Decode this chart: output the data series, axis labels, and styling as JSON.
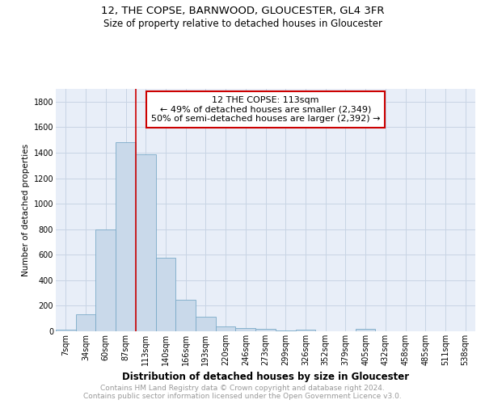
{
  "title": "12, THE COPSE, BARNWOOD, GLOUCESTER, GL4 3FR",
  "subtitle": "Size of property relative to detached houses in Gloucester",
  "xlabel": "Distribution of detached houses by size in Gloucester",
  "ylabel": "Number of detached properties",
  "categories": [
    "7sqm",
    "34sqm",
    "60sqm",
    "87sqm",
    "113sqm",
    "140sqm",
    "166sqm",
    "193sqm",
    "220sqm",
    "246sqm",
    "273sqm",
    "299sqm",
    "326sqm",
    "352sqm",
    "379sqm",
    "405sqm",
    "432sqm",
    "458sqm",
    "485sqm",
    "511sqm",
    "538sqm"
  ],
  "values": [
    15,
    135,
    795,
    1480,
    1390,
    575,
    248,
    113,
    38,
    25,
    20,
    5,
    15,
    0,
    0,
    18,
    0,
    0,
    0,
    0,
    0
  ],
  "bar_color": "#c9d9ea",
  "bar_edge_color": "#7aaac8",
  "annotation_lines": [
    "12 THE COPSE: 113sqm",
    "← 49% of detached houses are smaller (2,349)",
    "50% of semi-detached houses are larger (2,392) →"
  ],
  "annotation_box_color": "#ffffff",
  "annotation_box_edge_color": "#cc0000",
  "ylim": [
    0,
    1900
  ],
  "yticks": [
    0,
    200,
    400,
    600,
    800,
    1000,
    1200,
    1400,
    1600,
    1800
  ],
  "grid_color": "#c8d4e4",
  "background_color": "#e8eef8",
  "footer_line1": "Contains HM Land Registry data © Crown copyright and database right 2024.",
  "footer_line2": "Contains public sector information licensed under the Open Government Licence v3.0.",
  "title_fontsize": 9.5,
  "subtitle_fontsize": 8.5,
  "xlabel_fontsize": 8.5,
  "ylabel_fontsize": 7.5,
  "tick_fontsize": 7,
  "annotation_fontsize": 8,
  "footer_fontsize": 6.5
}
